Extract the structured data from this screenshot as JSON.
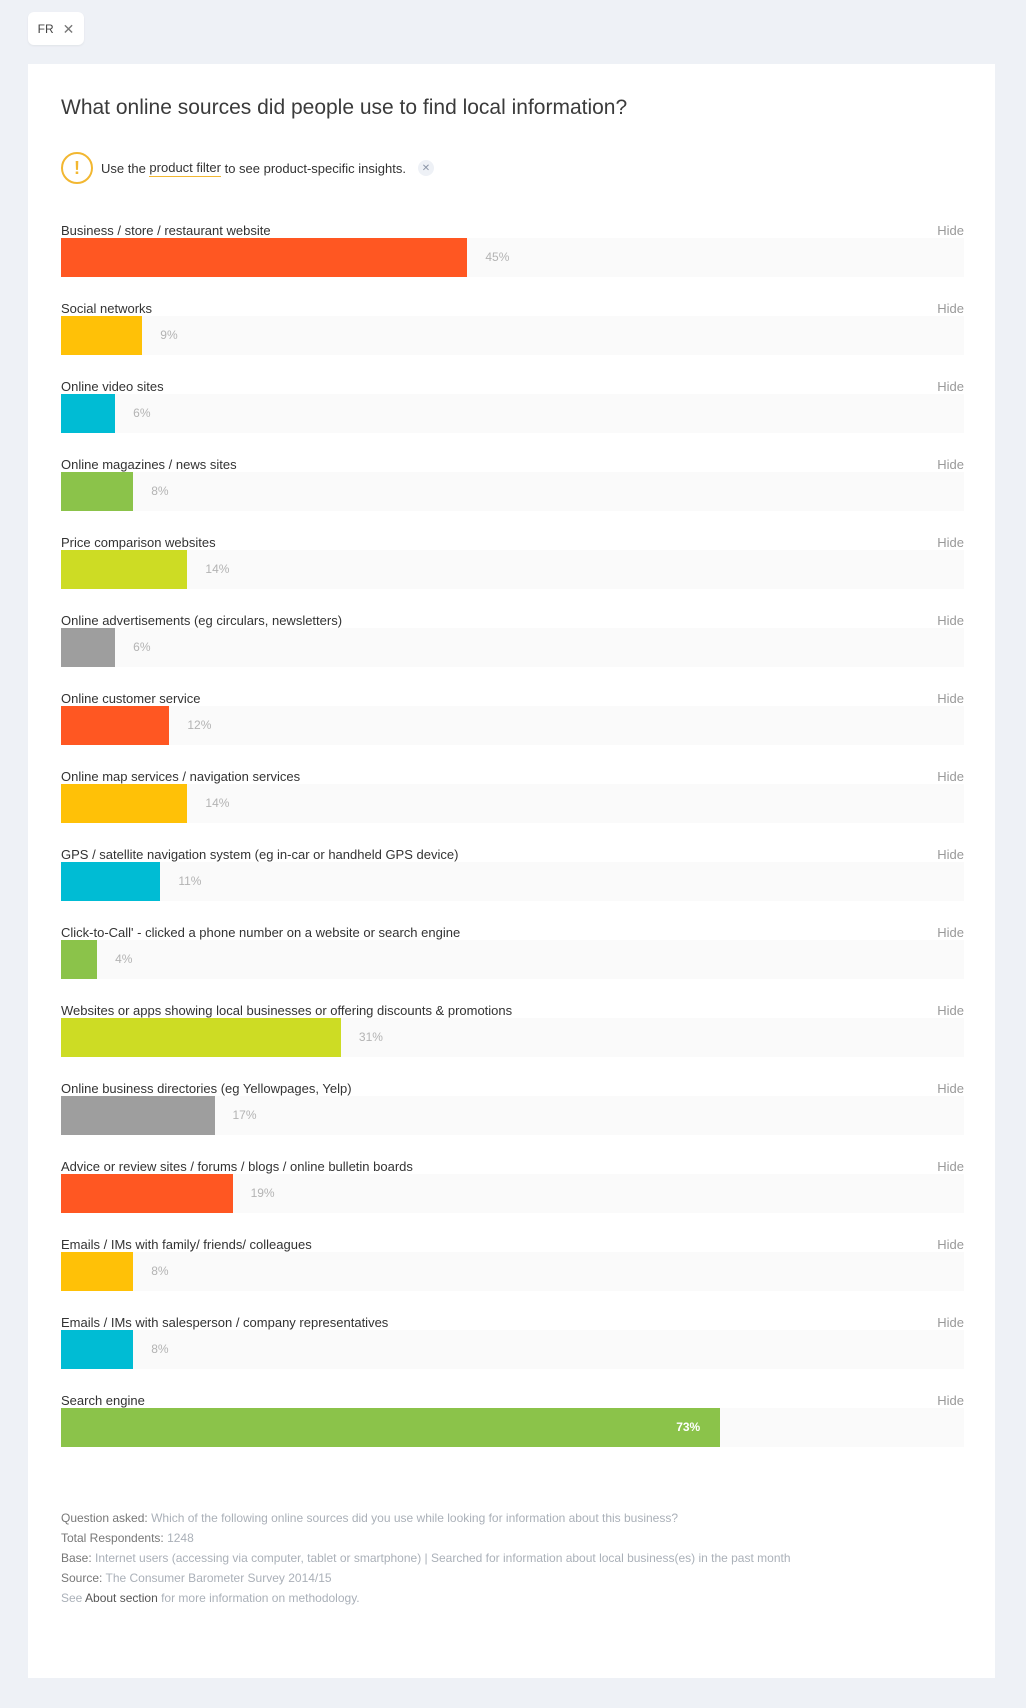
{
  "filter_chip": {
    "label": "FR",
    "close_glyph": "✕"
  },
  "title": "What online sources did people use to find local information?",
  "notice": {
    "glyph": "!",
    "text_before": "Use the ",
    "link": "product filter",
    "text_after": " to see product-specific insights.",
    "dismiss_glyph": "✕"
  },
  "hide_label": "Hide",
  "colors": {
    "red": "#ff5722",
    "yellow": "#ffc107",
    "cyan": "#00bcd4",
    "green": "#8bc34a",
    "lime": "#cddc24",
    "grey": "#9e9e9e"
  },
  "chart_data": {
    "type": "bar",
    "orientation": "horizontal",
    "xlim": [
      0,
      100
    ],
    "categories": [
      "Business / store / restaurant website",
      "Social networks",
      "Online video sites",
      "Online magazines / news sites",
      "Price comparison websites",
      "Online advertisements (eg circulars, newsletters)",
      "Online customer service",
      "Online map services / navigation services",
      "GPS / satellite navigation system (eg in-car or handheld GPS device)",
      "Click-to-Call' - clicked a phone number on a website or search engine",
      "Websites or apps showing local businesses or offering discounts & promotions",
      "Online business directories (eg Yellowpages, Yelp)",
      "Advice or review sites / forums / blogs / online bulletin boards",
      "Emails / IMs with family/ friends/ colleagues",
      "Emails / IMs with salesperson / company representatives",
      "Search engine"
    ],
    "values": [
      45,
      9,
      6,
      8,
      14,
      6,
      12,
      14,
      11,
      4,
      31,
      17,
      19,
      8,
      8,
      73
    ],
    "value_labels": [
      "45%",
      "9%",
      "6%",
      "8%",
      "14%",
      "6%",
      "12%",
      "14%",
      "11%",
      "4%",
      "31%",
      "17%",
      "19%",
      "8%",
      "8%",
      "73%"
    ],
    "bar_colors": [
      "#ff5722",
      "#ffc107",
      "#00bcd4",
      "#8bc34a",
      "#cddc24",
      "#9e9e9e",
      "#ff5722",
      "#ffc107",
      "#00bcd4",
      "#8bc34a",
      "#cddc24",
      "#9e9e9e",
      "#ff5722",
      "#ffc107",
      "#00bcd4",
      "#8bc34a"
    ]
  },
  "footer": {
    "question_key": "Question asked:",
    "question_val": "Which of the following online sources did you use while looking for information about this business?",
    "respondents_key": "Total Respondents:",
    "respondents_val": "1248",
    "base_key": "Base:",
    "base_val": "Internet users (accessing via computer, tablet or smartphone) | Searched for information about local business(es) in the past month",
    "source_key": "Source:",
    "source_val": "The Consumer Barometer Survey 2014/15",
    "see_prefix": "See",
    "about_link": "About section",
    "see_suffix": "for more information on methodology."
  }
}
